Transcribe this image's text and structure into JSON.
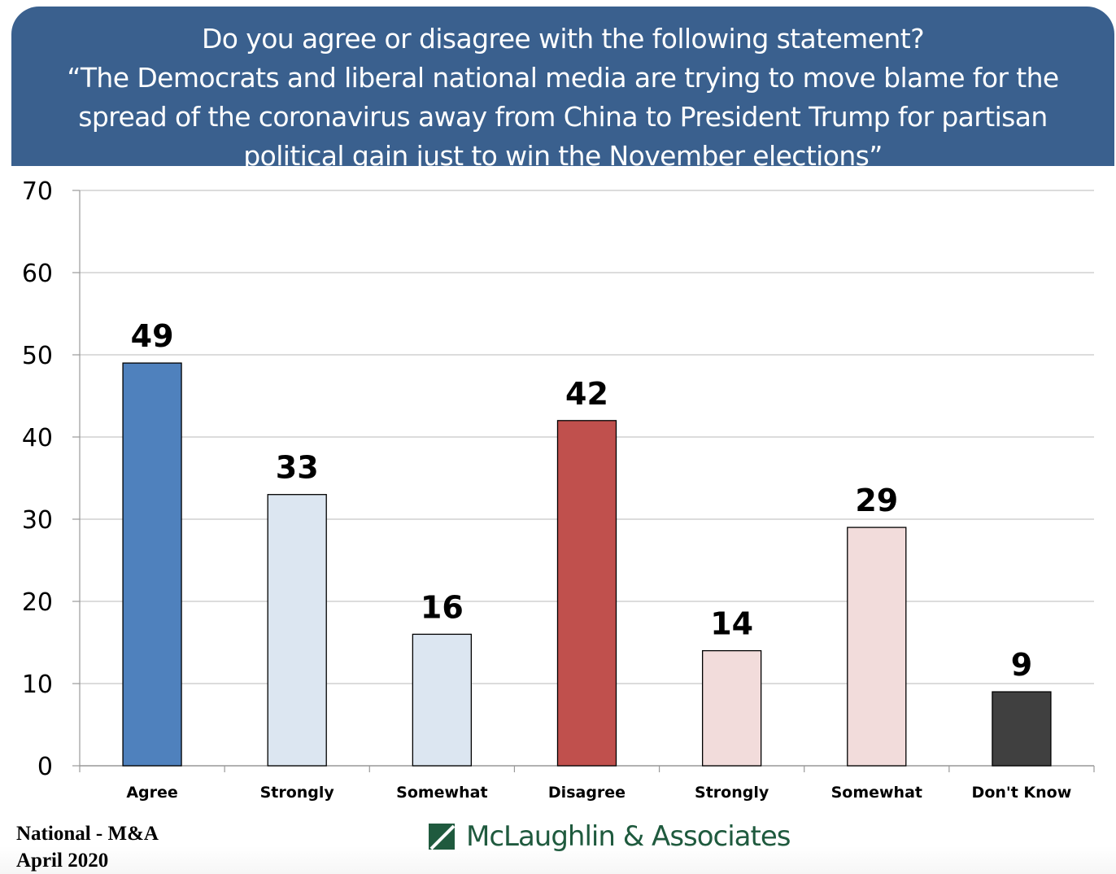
{
  "header": {
    "lines": [
      "Do you agree or disagree with the following statement?",
      "“The Democrats and liberal national media are trying to move blame for the",
      "spread of the coronavirus away from China to President Trump for partisan",
      "political gain just to win the November elections”"
    ]
  },
  "chart_data": {
    "type": "bar",
    "title": "Do you agree or disagree with the following statement? “The Democrats and liberal national media are trying to move blame for the spread of the coronavirus away from China to President Trump for partisan political gain just to win the November elections”",
    "categories": [
      "Agree",
      "Strongly",
      "Somewhat",
      "Disagree",
      "Strongly",
      "Somewhat",
      "Don't Know"
    ],
    "values": [
      49,
      33,
      16,
      42,
      14,
      29,
      9
    ],
    "colors": [
      "#4f81bd",
      "#dce6f1",
      "#dce6f1",
      "#c0504d",
      "#f2dcdb",
      "#f2dcdb",
      "#404040"
    ],
    "ylim": [
      0,
      70
    ],
    "yticks": [
      0,
      10,
      20,
      30,
      40,
      50,
      60,
      70
    ],
    "grid": true,
    "xlabel": "",
    "ylabel": ""
  },
  "footer": {
    "source_line1": "National - M&A",
    "source_line2": "April 2020",
    "logo_text": "McLaughlin & Associates",
    "logo_color": "#1f5a3e"
  }
}
